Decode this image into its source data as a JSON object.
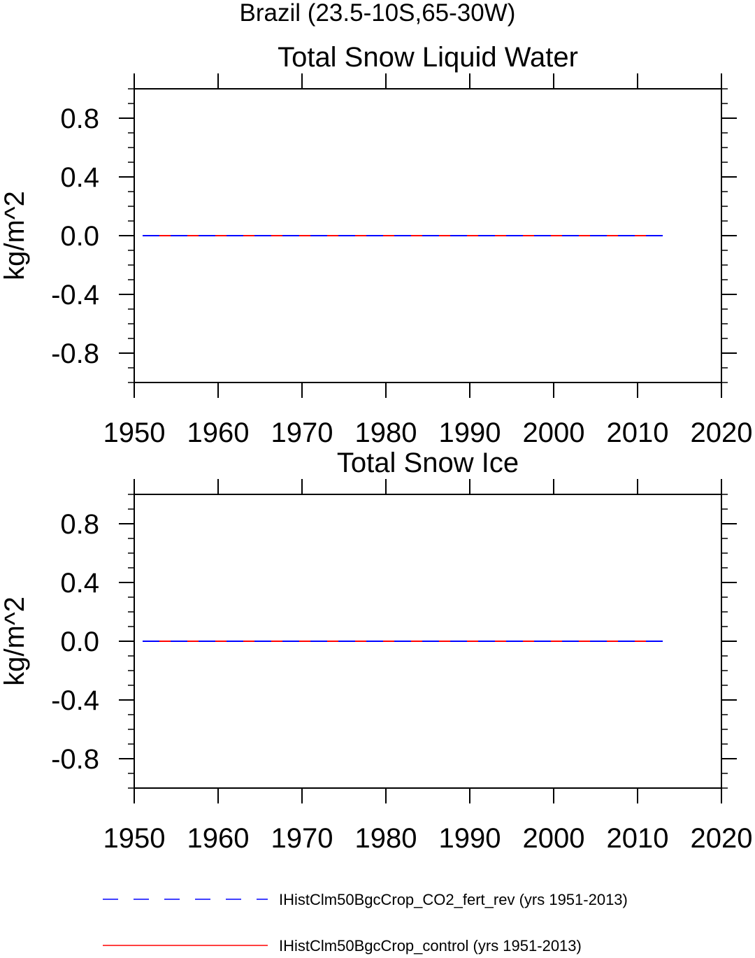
{
  "page_title": "Brazil (23.5-10S,65-30W)",
  "legend": [
    {
      "label": "IHistClm50BgcCrop_CO2_fert_rev (yrs 1951-2013)",
      "color": "#0000ff",
      "dash": "dashed"
    },
    {
      "label": "IHistClm50BgcCrop_control (yrs 1951-2013)",
      "color": "#ff0000",
      "dash": "solid"
    }
  ],
  "chart_data": [
    {
      "type": "line",
      "title": "Total Snow Liquid Water",
      "xlabel": "",
      "ylabel": "kg/m^2",
      "xlim": [
        1950,
        2020
      ],
      "ylim": [
        -1.0,
        1.0
      ],
      "xticks": [
        1950,
        1960,
        1970,
        1980,
        1990,
        2000,
        2010,
        2020
      ],
      "yticks": [
        0.8,
        0.4,
        0.0,
        -0.4,
        -0.8
      ],
      "ytick_labels": [
        "0.8",
        "0.4",
        "0.0",
        "-0.4",
        "-0.8"
      ],
      "series": [
        {
          "name": "IHistClm50BgcCrop_control (yrs 1951-2013)",
          "color": "#ff0000",
          "dash": "solid",
          "x": [
            1951,
            2013
          ],
          "y": [
            0.0,
            0.0
          ]
        },
        {
          "name": "IHistClm50BgcCrop_CO2_fert_rev (yrs 1951-2013)",
          "color": "#0000ff",
          "dash": "dashed",
          "x": [
            1951,
            2013
          ],
          "y": [
            0.0,
            0.0
          ]
        }
      ]
    },
    {
      "type": "line",
      "title": "Total Snow Ice",
      "xlabel": "",
      "ylabel": "kg/m^2",
      "xlim": [
        1950,
        2020
      ],
      "ylim": [
        -1.0,
        1.0
      ],
      "xticks": [
        1950,
        1960,
        1970,
        1980,
        1990,
        2000,
        2010,
        2020
      ],
      "yticks": [
        0.8,
        0.4,
        0.0,
        -0.4,
        -0.8
      ],
      "ytick_labels": [
        "0.8",
        "0.4",
        "0.0",
        "-0.4",
        "-0.8"
      ],
      "series": [
        {
          "name": "IHistClm50BgcCrop_control (yrs 1951-2013)",
          "color": "#ff0000",
          "dash": "solid",
          "x": [
            1951,
            2013
          ],
          "y": [
            0.0,
            0.0
          ]
        },
        {
          "name": "IHistClm50BgcCrop_CO2_fert_rev (yrs 1951-2013)",
          "color": "#0000ff",
          "dash": "dashed",
          "x": [
            1951,
            2013
          ],
          "y": [
            0.0,
            0.0
          ]
        }
      ]
    }
  ]
}
